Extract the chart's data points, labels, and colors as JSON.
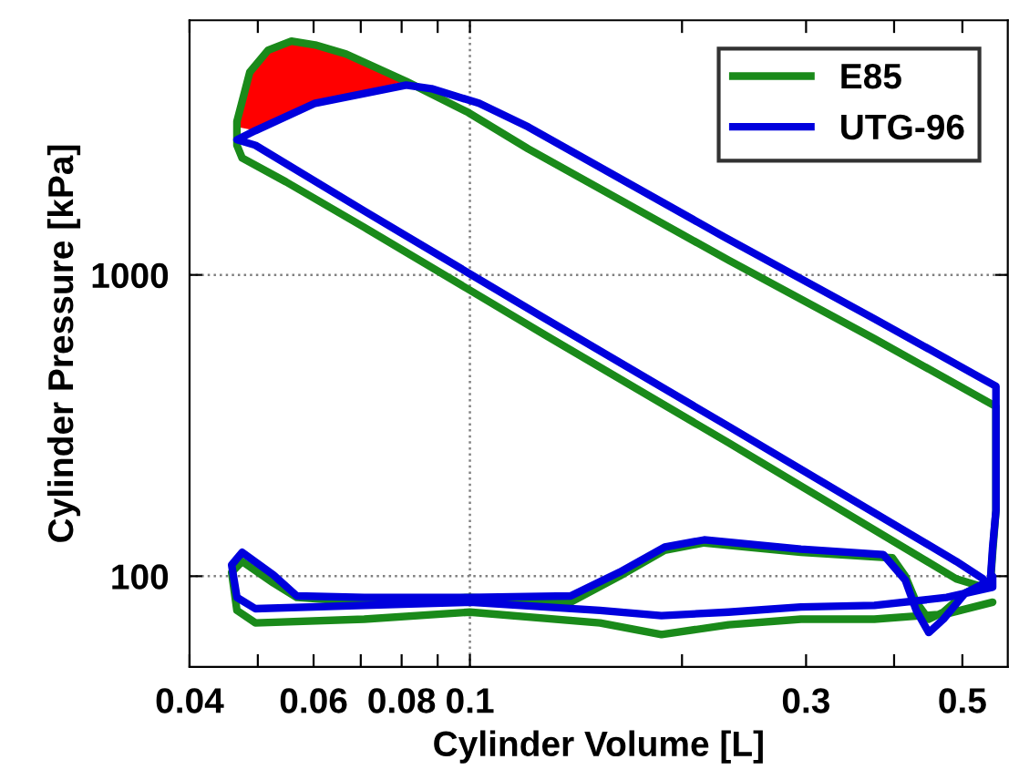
{
  "chart_data": {
    "type": "line",
    "xlabel": "Cylinder Volume [L]",
    "ylabel": "Cylinder Pressure [kPa]",
    "log": "xy",
    "xlim": [
      0.04,
      0.58
    ],
    "ylim": [
      50,
      7000
    ],
    "xticks": [
      0.04,
      {
        "value": 0.05,
        "label": null
      },
      0.06,
      {
        "value": 0.07,
        "label": null
      },
      0.08,
      {
        "value": 0.09,
        "label": null
      },
      0.1,
      {
        "value": 0.2,
        "label": null
      },
      0.3,
      {
        "value": 0.4,
        "label": null
      },
      0.5
    ],
    "yticks": [
      100,
      1000
    ],
    "legend": "top right",
    "line_style": "solid",
    "marker": "none",
    "ref_lines": [
      {
        "axis": "x",
        "value": 0.1,
        "color": "#808080",
        "line_style": "dotted"
      },
      {
        "axis": "y",
        "value": 1000,
        "color": "#808080",
        "line_style": "dotted"
      },
      {
        "axis": "y",
        "value": 100,
        "color": "#808080",
        "line_style": "dotted"
      }
    ],
    "series": [
      {
        "type": "area",
        "color": "#ff0000",
        "x": [
          0.0467,
          0.0496,
          0.0526,
          0.0558,
          0.0603,
          0.0667,
          0.073,
          0.0812,
          0.073,
          0.0667,
          0.0603,
          0.0558,
          0.0526,
          0.0496
        ],
        "values": [
          3097,
          5047,
          5644,
          5968,
          5800,
          5413,
          4909,
          4389,
          4151,
          3981,
          3713,
          3512,
          3275,
          3012
        ]
      },
      {
        "name": "E85",
        "color": "#1a8a1a",
        "x": [
          0.535,
          0.49,
          0.233,
          0.128,
          0.0708,
          0.0548,
          0.0475,
          0.0467,
          0.0467,
          0.0487,
          0.0517,
          0.0558,
          0.0603,
          0.0667,
          0.0812,
          0.0994,
          0.121,
          0.233,
          0.375,
          0.558,
          0.558,
          0.558,
          0.552,
          0.548,
          0.505,
          0.47,
          0.448,
          0.43,
          0.415,
          0.398,
          0.295,
          0.215,
          0.189,
          0.163,
          0.139,
          0.1,
          0.0708,
          0.0568,
          0.0526,
          0.0475,
          0.0459,
          0.0467,
          0.0496,
          0.0708,
          0.1,
          0.153,
          0.187,
          0.233,
          0.295,
          0.375,
          0.475,
          0.552
        ],
        "values": [
          92,
          98,
          277,
          631,
          1438,
          2037,
          2443,
          2694,
          3229,
          4706,
          5566,
          5968,
          5800,
          5413,
          4389,
          3463,
          2620,
          1118,
          614,
          366,
          289,
          165,
          120,
          95,
          88,
          76,
          72,
          82,
          100,
          115,
          120,
          129,
          122,
          100,
          82,
          85,
          82,
          85,
          95,
          112,
          103,
          77,
          70,
          72,
          76,
          70,
          64,
          69,
          72,
          72,
          75,
          82
        ]
      },
      {
        "name": "UTG-96",
        "color": "#0000dd",
        "x": [
          0.535,
          0.49,
          0.233,
          0.128,
          0.0708,
          0.0496,
          0.0467,
          0.0496,
          0.0603,
          0.0812,
          0.0882,
          0.103,
          0.121,
          0.229,
          0.375,
          0.535,
          0.558,
          0.558,
          0.558,
          0.552,
          0.548,
          0.505,
          0.47,
          0.448,
          0.43,
          0.415,
          0.386,
          0.295,
          0.215,
          0.189,
          0.163,
          0.139,
          0.1,
          0.0708,
          0.0568,
          0.0526,
          0.0475,
          0.0459,
          0.0467,
          0.0496,
          0.0708,
          0.1,
          0.153,
          0.187,
          0.233,
          0.295,
          0.375,
          0.475,
          0.552,
          0.552
        ],
        "values": [
          98,
          112,
          314,
          715,
          1630,
          2694,
          2809,
          3012,
          3713,
          4268,
          4151,
          3713,
          3097,
          1341,
          715,
          451,
          427,
          289,
          165,
          125,
          97,
          88,
          72,
          65,
          77,
          97,
          118,
          123,
          132,
          125,
          103,
          86,
          85,
          85,
          86,
          101,
          120,
          109,
          85,
          78,
          80,
          82,
          77,
          74,
          76,
          79,
          80,
          85,
          92,
          100
        ]
      }
    ]
  }
}
